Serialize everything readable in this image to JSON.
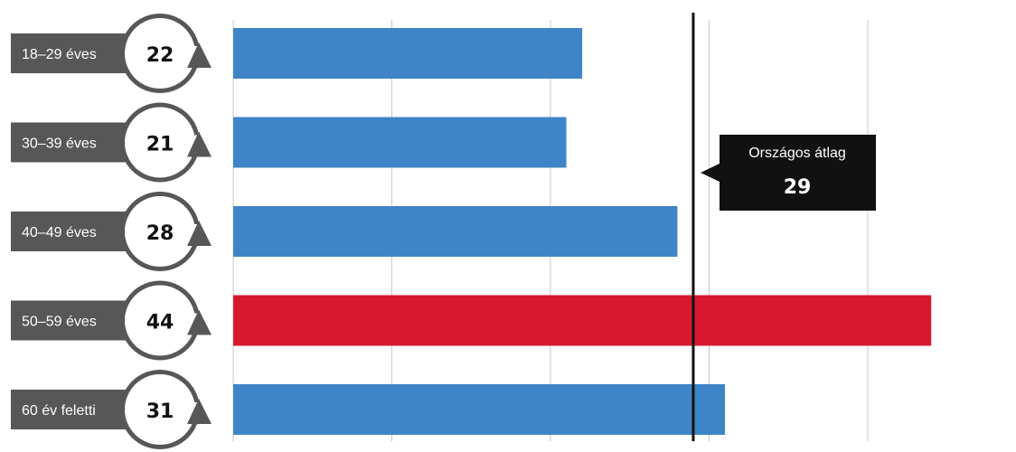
{
  "chart_data": {
    "type": "bar",
    "orientation": "horizontal",
    "categories": [
      "18–29 éves",
      "30–39 éves",
      "40–49 éves",
      "50–59 éves",
      "60 év feletti"
    ],
    "values": [
      22,
      21,
      28,
      44,
      31
    ],
    "value_labels": [
      "22",
      "21",
      "28",
      "44",
      "31"
    ],
    "xlim": [
      0,
      50
    ],
    "grid": true,
    "highlight_index": 3,
    "reference_line": {
      "label": "Országos átlag",
      "value": 29,
      "value_label": "29"
    },
    "colors": {
      "bar": "#3d85c6",
      "highlight": "#d7182f",
      "label_box": "#575757",
      "circle": "#575757",
      "reference": "#111111",
      "grid": "#c8c8c8"
    }
  }
}
